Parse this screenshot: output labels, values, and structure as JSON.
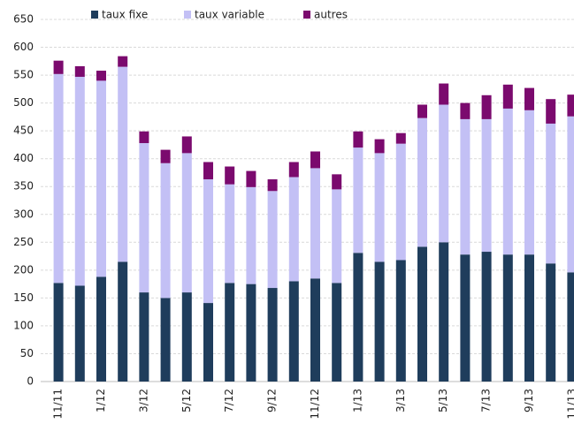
{
  "chart_data": {
    "type": "stacked_bar",
    "categories": [
      "11/11",
      null,
      "1/12",
      null,
      "3/12",
      null,
      "5/12",
      null,
      "7/12",
      null,
      "9/12",
      null,
      "11/12",
      null,
      "1/13",
      null,
      "3/13",
      null,
      "5/13",
      null,
      "7/13",
      null,
      "9/13",
      null,
      "11/13"
    ],
    "series": [
      {
        "name": "taux fixe",
        "color": "#1f3d5c",
        "values": [
          177,
          172,
          188,
          215,
          160,
          150,
          160,
          141,
          177,
          175,
          168,
          180,
          185,
          177,
          231,
          215,
          218,
          242,
          250,
          228,
          233,
          228,
          228,
          212,
          196
        ]
      },
      {
        "name": "taux variable",
        "color": "#c3c0f5",
        "values": [
          375,
          375,
          352,
          350,
          268,
          242,
          250,
          222,
          177,
          174,
          174,
          187,
          198,
          168,
          189,
          195,
          209,
          231,
          247,
          243,
          238,
          262,
          259,
          251,
          280
        ]
      },
      {
        "name": "autres",
        "color": "#7b0a6e",
        "values": [
          24,
          19,
          18,
          19,
          21,
          24,
          30,
          31,
          32,
          29,
          21,
          27,
          30,
          27,
          29,
          25,
          19,
          24,
          38,
          29,
          43,
          43,
          40,
          44,
          39
        ]
      }
    ],
    "ylim": [
      0,
      650
    ],
    "yticks": [
      0,
      50,
      100,
      150,
      200,
      250,
      300,
      350,
      400,
      450,
      500,
      550,
      600,
      650
    ],
    "grid": true,
    "legend": "top"
  }
}
